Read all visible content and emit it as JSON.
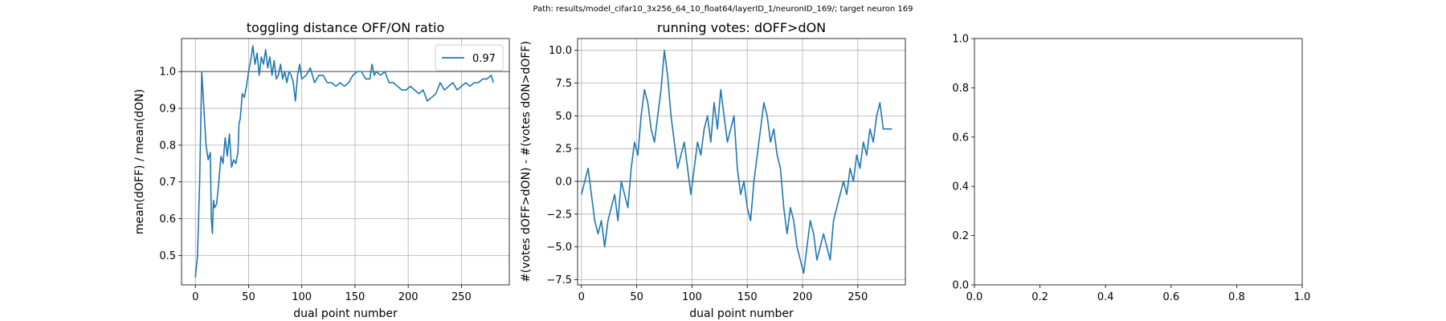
{
  "suptitle": "Path: results/model_cifar10_3x256_64_10_float64/layerID_1/neuronID_169/; target neuron 169",
  "chart_data": [
    {
      "type": "line",
      "title": "toggling distance OFF/ON ratio",
      "xlabel": "dual point number",
      "ylabel": "mean(dOFF) / mean(dON)",
      "xlim": [
        -13,
        295
      ],
      "ylim": [
        0.42,
        1.09
      ],
      "xticks": [
        0,
        50,
        100,
        150,
        200,
        250
      ],
      "yticks": [
        0.5,
        0.6,
        0.7,
        0.8,
        0.9,
        1.0
      ],
      "ytick_labels": [
        "0.5",
        "0.6",
        "0.7",
        "0.8",
        "0.9",
        "1.0"
      ],
      "grid": true,
      "legend_position": "top-right",
      "reference_line": 1.0,
      "series": [
        {
          "name": "0.97",
          "color": "#1f77b4",
          "x": [
            0,
            2,
            4,
            6,
            8,
            10,
            12,
            14,
            15,
            16,
            17,
            18,
            20,
            22,
            24,
            26,
            28,
            30,
            32,
            34,
            36,
            38,
            40,
            41,
            42,
            43,
            44,
            46,
            48,
            50,
            52,
            54,
            56,
            58,
            60,
            62,
            64,
            66,
            68,
            70,
            72,
            74,
            76,
            78,
            80,
            82,
            84,
            86,
            88,
            90,
            92,
            94,
            96,
            98,
            100,
            104,
            108,
            112,
            116,
            120,
            124,
            128,
            132,
            136,
            140,
            144,
            148,
            152,
            156,
            160,
            164,
            166,
            168,
            170,
            174,
            178,
            182,
            186,
            190,
            194,
            198,
            202,
            206,
            210,
            214,
            218,
            222,
            226,
            230,
            234,
            238,
            242,
            246,
            250,
            254,
            258,
            262,
            266,
            270,
            274,
            278,
            280
          ],
          "values": [
            0.44,
            0.5,
            0.7,
            1.0,
            0.9,
            0.8,
            0.76,
            0.78,
            0.6,
            0.56,
            0.65,
            0.63,
            0.64,
            0.7,
            0.77,
            0.75,
            0.82,
            0.77,
            0.83,
            0.74,
            0.76,
            0.75,
            0.78,
            0.86,
            0.87,
            0.9,
            0.94,
            0.93,
            0.96,
            1.0,
            1.03,
            1.07,
            1.02,
            1.05,
            0.99,
            1.04,
            1.02,
            1.06,
            1.01,
            1.04,
            0.99,
            1.03,
            0.98,
            0.99,
            1.02,
            0.98,
            1.0,
            0.97,
            1.0,
            0.99,
            0.97,
            0.92,
            0.99,
            1.02,
            0.98,
            0.99,
            1.01,
            0.97,
            0.99,
            0.99,
            0.97,
            0.97,
            0.96,
            0.97,
            0.96,
            0.97,
            0.99,
            1.0,
            1.0,
            0.98,
            0.98,
            1.02,
            0.99,
            1.0,
            0.99,
            1.0,
            0.97,
            0.97,
            0.96,
            0.95,
            0.95,
            0.96,
            0.95,
            0.94,
            0.95,
            0.92,
            0.93,
            0.94,
            0.97,
            0.95,
            0.96,
            0.97,
            0.95,
            0.96,
            0.97,
            0.96,
            0.97,
            0.97,
            0.98,
            0.98,
            0.99,
            0.97
          ]
        }
      ]
    },
    {
      "type": "line",
      "title": "running votes: dOFF>dON",
      "xlabel": "dual point number",
      "ylabel": "#(votes dOFF>dON) - #(votes dON>dOFF)",
      "xlim": [
        -3.5,
        293
      ],
      "ylim": [
        -7.9,
        10.9
      ],
      "xticks": [
        0,
        50,
        100,
        150,
        200,
        250
      ],
      "yticks": [
        -7.5,
        -5.0,
        -2.5,
        0.0,
        2.5,
        5.0,
        7.5,
        10.0
      ],
      "ytick_labels": [
        "−7.5",
        "−5.0",
        "−2.5",
        "0.0",
        "2.5",
        "5.0",
        "7.5",
        "10.0"
      ],
      "grid": true,
      "reference_line": 0.0,
      "series": [
        {
          "name": "",
          "color": "#1f77b4",
          "x": [
            0,
            3,
            6,
            9,
            12,
            15,
            18,
            21,
            24,
            27,
            30,
            33,
            36,
            39,
            42,
            45,
            48,
            51,
            54,
            57,
            60,
            63,
            66,
            69,
            72,
            75,
            78,
            81,
            84,
            87,
            90,
            93,
            96,
            99,
            102,
            105,
            108,
            111,
            114,
            117,
            120,
            123,
            126,
            129,
            132,
            135,
            138,
            141,
            144,
            147,
            150,
            153,
            156,
            159,
            162,
            165,
            168,
            171,
            174,
            177,
            180,
            183,
            186,
            189,
            192,
            195,
            198,
            201,
            204,
            207,
            210,
            213,
            216,
            219,
            222,
            225,
            228,
            231,
            234,
            237,
            240,
            243,
            246,
            249,
            252,
            255,
            258,
            261,
            264,
            267,
            270,
            273,
            276,
            279,
            281
          ],
          "values": [
            -1,
            0,
            1,
            -1,
            -3,
            -4,
            -3,
            -5,
            -3,
            -2,
            -1,
            -3,
            0,
            -1,
            -2,
            1,
            3,
            2,
            5,
            7,
            6,
            4,
            3,
            5,
            7,
            10,
            8,
            5,
            3,
            1,
            2,
            3,
            1,
            -1,
            1,
            3,
            2,
            4,
            5,
            3,
            6,
            4,
            7,
            5,
            3,
            4,
            5,
            1,
            -1,
            0,
            -2,
            -3,
            0,
            2,
            4,
            6,
            5,
            3,
            4,
            2,
            1,
            -2,
            -4,
            -2,
            -3,
            -5,
            -6,
            -7,
            -5,
            -3,
            -4,
            -6,
            -5,
            -4,
            -5,
            -6,
            -3,
            -2,
            -1,
            0,
            -1,
            1,
            0,
            2,
            1,
            3,
            2,
            4,
            3,
            5,
            6,
            4,
            4,
            4,
            4
          ]
        }
      ]
    },
    {
      "type": "line",
      "title": "",
      "xlabel": "",
      "ylabel": "",
      "xlim": [
        0,
        1
      ],
      "ylim": [
        0,
        1
      ],
      "xticks": [
        0,
        0.2,
        0.4,
        0.6,
        0.8,
        1.0
      ],
      "yticks": [
        0,
        0.2,
        0.4,
        0.6,
        0.8,
        1.0
      ],
      "xtick_labels": [
        "0.0",
        "0.2",
        "0.4",
        "0.6",
        "0.8",
        "1.0"
      ],
      "ytick_labels": [
        "0.0",
        "0.2",
        "0.4",
        "0.6",
        "0.8",
        "1.0"
      ],
      "grid": false,
      "series": []
    }
  ]
}
